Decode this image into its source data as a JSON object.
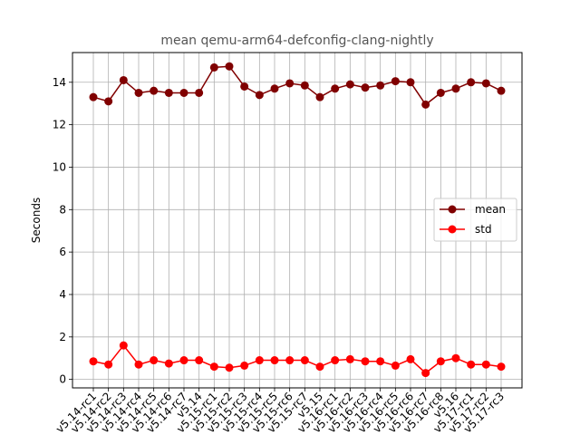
{
  "chart_data": {
    "type": "line",
    "title": "mean qemu-arm64-defconfig-clang-nightly",
    "xlabel": "",
    "ylabel": "Seconds",
    "categories": [
      "v5.14-rc1",
      "v5.14-rc2",
      "v5.14-rc3",
      "v5.14-rc4",
      "v5.14-rc5",
      "v5.14-rc6",
      "v5.14-rc7",
      "v5.14",
      "v5.15-rc1",
      "v5.15-rc2",
      "v5.15-rc3",
      "v5.15-rc4",
      "v5.15-rc5",
      "v5.15-rc6",
      "v5.15-rc7",
      "v5.15",
      "v5.16-rc1",
      "v5.16-rc2",
      "v5.16-rc3",
      "v5.16-rc4",
      "v5.16-rc5",
      "v5.16-rc6",
      "v5.16-rc7",
      "v5.16-rc8",
      "v5.16",
      "v5.17-rc1",
      "v5.17-rc2",
      "v5.17-rc3"
    ],
    "ylim": [
      -0.4,
      15.4
    ],
    "yticks": [
      0,
      2,
      4,
      6,
      8,
      10,
      12,
      14
    ],
    "grid": true,
    "legend_position": "center-right",
    "series": [
      {
        "name": "mean",
        "color": "#800000",
        "values": [
          13.3,
          13.1,
          14.1,
          13.5,
          13.6,
          13.5,
          13.5,
          13.5,
          14.7,
          14.75,
          13.8,
          13.4,
          13.7,
          13.95,
          13.85,
          13.3,
          13.7,
          13.9,
          13.75,
          13.85,
          14.05,
          14.0,
          12.95,
          13.5,
          13.7,
          14.0,
          13.95,
          13.6
        ]
      },
      {
        "name": "std",
        "color": "#ff0000",
        "values": [
          0.85,
          0.7,
          1.6,
          0.7,
          0.9,
          0.75,
          0.9,
          0.9,
          0.6,
          0.55,
          0.65,
          0.9,
          0.9,
          0.9,
          0.9,
          0.6,
          0.9,
          0.95,
          0.85,
          0.85,
          0.65,
          0.95,
          0.3,
          0.85,
          1.0,
          0.7,
          0.7,
          0.6
        ]
      }
    ]
  }
}
